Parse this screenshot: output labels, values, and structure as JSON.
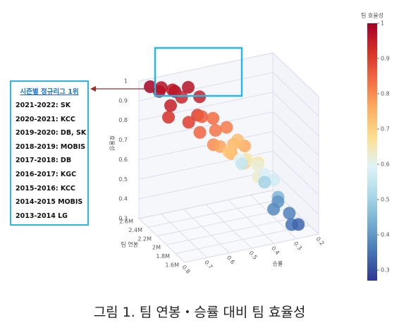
{
  "chart_data": {
    "type": "scatter3d",
    "x_label": "승률",
    "y_label": "팀 연봉",
    "z_label": "효율성",
    "colorbar_title": "팀 효율성",
    "x": [
      0.78,
      0.75,
      0.72,
      0.7,
      0.68,
      0.74,
      0.66,
      0.62,
      0.6,
      0.77,
      0.7,
      0.64,
      0.6,
      0.66,
      0.58,
      0.55,
      0.62,
      0.52,
      0.58,
      0.55,
      0.5,
      0.53,
      0.48,
      0.46,
      0.5,
      0.47,
      0.44,
      0.42,
      0.45,
      0.4,
      0.43,
      0.38,
      0.36,
      0.4,
      0.35,
      0.32,
      0.3,
      0.28,
      0.3,
      0.26,
      0.33
    ],
    "y": [
      2450000,
      2400000,
      2500000,
      2300000,
      2450000,
      2200000,
      2350000,
      2400000,
      2250000,
      2100000,
      2000000,
      2100000,
      2200000,
      1950000,
      2000000,
      2200000,
      1850000,
      2050000,
      1900000,
      1800000,
      2000000,
      1950000,
      1850000,
      2100000,
      1750000,
      1900000,
      2000000,
      1850000,
      1700000,
      1950000,
      2200000,
      1900000,
      1800000,
      2300000,
      2050000,
      1900000,
      2000000,
      1850000,
      1700000,
      1750000,
      1950000
    ],
    "z": [
      1.0,
      0.98,
      0.97,
      0.99,
      0.96,
      0.95,
      0.94,
      0.97,
      0.95,
      0.92,
      0.9,
      0.9,
      0.86,
      0.85,
      0.83,
      0.84,
      0.8,
      0.82,
      0.77,
      0.75,
      0.74,
      0.72,
      0.76,
      0.73,
      0.7,
      0.67,
      0.65,
      0.66,
      0.63,
      0.62,
      0.6,
      0.58,
      0.57,
      0.55,
      0.5,
      0.45,
      0.4,
      0.37,
      0.35,
      0.33,
      0.38
    ],
    "xlim": [
      0.8,
      0.2
    ],
    "xticks": [
      0.8,
      0.7,
      0.6,
      0.5,
      0.4,
      0.3,
      0.2
    ],
    "ylim": [
      1600000,
      2600000
    ],
    "yticks": [
      {
        "value": 1600000,
        "label": "1.6M"
      },
      {
        "value": 1800000,
        "label": "1.8M"
      },
      {
        "value": 2000000,
        "label": "2M"
      },
      {
        "value": 2200000,
        "label": "2.2M"
      },
      {
        "value": 2400000,
        "label": "2.4M"
      },
      {
        "value": 2600000,
        "label": "2.6M"
      }
    ],
    "zlim": [
      0.3,
      1
    ],
    "zticks": [
      0.3,
      0.4,
      0.5,
      0.6,
      0.7,
      0.8,
      0.9,
      1
    ],
    "clim": [
      0.27,
      1
    ],
    "cticks": [
      0.3,
      0.4,
      0.5,
      0.6,
      0.7,
      0.8,
      0.9,
      1
    ],
    "colorscale": [
      "#313695",
      "#4575b4",
      "#74add1",
      "#abd9e9",
      "#e0f3f8",
      "#fee090",
      "#fdae61",
      "#f46d43",
      "#d73027",
      "#a50026"
    ],
    "grid": true,
    "annotation": {
      "title": "시즌별 정규리그 1위",
      "items": [
        "2021-2022: SK",
        "2020-2021: KCC",
        "2019-2020: DB, SK",
        "2018-2019: MOBIS",
        "2017-2018: DB",
        "2016-2017: KGC",
        "2015-2016: KCC",
        "2014-2015 MOBIS",
        "2013-2014 LG"
      ]
    },
    "caption": "그림 1. 팀 연봉・승률 대비 팀 효율성"
  }
}
